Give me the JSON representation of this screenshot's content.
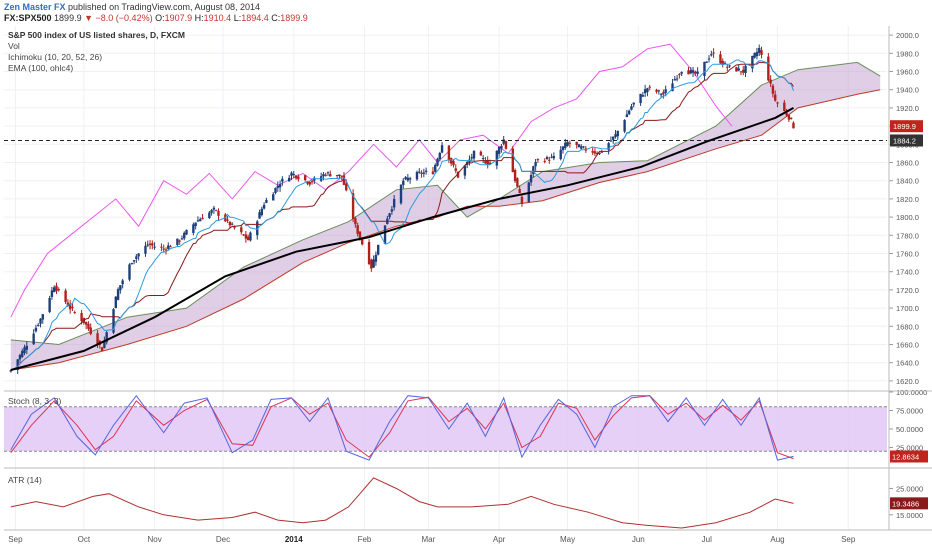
{
  "header": {
    "author": "Zen Master FX",
    "published": "published on TradingView.com, August 08, 2014",
    "symbol": "FX:SPX500",
    "last": "1899.9",
    "arrow": "▼",
    "change": "−8.0 (−0.42%)",
    "o_label": "O:",
    "o_value": "1907.9",
    "h_label": "H:",
    "h_value": "1910.4",
    "l_label": "L:",
    "l_value": "1894.4",
    "c_label": "C:",
    "c_value": "1899.9"
  },
  "legend": {
    "title": "S&P 500 index of US listed shares, D, FXCM",
    "vol": "Vol",
    "ichimoku": "Ichimoku (10, 20, 52, 26)",
    "ema": "EMA (100, ohlc4)",
    "stoch": "Stoch (8, 3, 3)",
    "atr": "ATR (14)"
  },
  "colors": {
    "up": "#1f3f7a",
    "down": "#b0201c",
    "cloud_fill": "#c7a6d4",
    "cloud_edge_top": "#6b8e5a",
    "cloud_edge_bottom": "#c0392b",
    "tenkan": "#2b9be0",
    "kijun": "#8a1a1a",
    "chikou": "#ee55ee",
    "ema": "#000000",
    "stoch_k": "#5566dd",
    "stoch_d": "#dd3355",
    "stoch_band": "#e2c8f6",
    "atr": "#b03030"
  },
  "markers": {
    "price_label": "1899.9",
    "hline_label": "1884.2",
    "stoch_label": "12.8634",
    "atr_label": "19.3486"
  },
  "chart_data": [
    {
      "type": "candlestick",
      "title": "S&P 500 index of US listed shares, D, FXCM",
      "ylim": [
        1610,
        2010
      ],
      "y_ticks": [
        "2000.0",
        "1980.0",
        "1960.0",
        "1940.0",
        "1920.0",
        "1900.0",
        "1880.0",
        "1860.0",
        "1840.0",
        "1820.0",
        "1800.0",
        "1780.0",
        "1760.0",
        "1740.0",
        "1720.0",
        "1700.0",
        "1680.0",
        "1660.0",
        "1640.0",
        "1620.0"
      ],
      "x_ticks": [
        "Sep",
        "Oct",
        "Nov",
        "Dec",
        "2014",
        "Feb",
        "Mar",
        "Apr",
        "May",
        "Jun",
        "Jul",
        "Aug",
        "Sep"
      ],
      "horizontal_line": 1884.2,
      "last_price": 1899.9,
      "close_path": [
        [
          "2013-08-30",
          1632
        ],
        [
          "2013-09-05",
          1656
        ],
        [
          "2013-09-12",
          1688
        ],
        [
          "2013-09-18",
          1725
        ],
        [
          "2013-09-25",
          1700
        ],
        [
          "2013-10-01",
          1685
        ],
        [
          "2013-10-09",
          1655
        ],
        [
          "2013-10-16",
          1720
        ],
        [
          "2013-10-22",
          1752
        ],
        [
          "2013-10-29",
          1770
        ],
        [
          "2013-11-05",
          1765
        ],
        [
          "2013-11-12",
          1775
        ],
        [
          "2013-11-19",
          1795
        ],
        [
          "2013-11-27",
          1808
        ],
        [
          "2013-12-05",
          1790
        ],
        [
          "2013-12-12",
          1775
        ],
        [
          "2013-12-19",
          1815
        ],
        [
          "2013-12-26",
          1838
        ],
        [
          "2013-12-31",
          1848
        ],
        [
          "2014-01-08",
          1838
        ],
        [
          "2014-01-15",
          1848
        ],
        [
          "2014-01-22",
          1845
        ],
        [
          "2014-01-28",
          1790
        ],
        [
          "2014-02-04",
          1745
        ],
        [
          "2014-02-11",
          1800
        ],
        [
          "2014-02-18",
          1840
        ],
        [
          "2014-02-25",
          1848
        ],
        [
          "2014-03-03",
          1850
        ],
        [
          "2014-03-07",
          1880
        ],
        [
          "2014-03-14",
          1845
        ],
        [
          "2014-03-21",
          1870
        ],
        [
          "2014-03-28",
          1858
        ],
        [
          "2014-04-03",
          1885
        ],
        [
          "2014-04-11",
          1815
        ],
        [
          "2014-04-17",
          1862
        ],
        [
          "2014-04-25",
          1865
        ],
        [
          "2014-05-01",
          1882
        ],
        [
          "2014-05-08",
          1875
        ],
        [
          "2014-05-15",
          1870
        ],
        [
          "2014-05-22",
          1890
        ],
        [
          "2014-05-29",
          1922
        ],
        [
          "2014-06-05",
          1942
        ],
        [
          "2014-06-12",
          1935
        ],
        [
          "2014-06-20",
          1962
        ],
        [
          "2014-06-27",
          1957
        ],
        [
          "2014-07-03",
          1980
        ],
        [
          "2014-07-10",
          1965
        ],
        [
          "2014-07-17",
          1960
        ],
        [
          "2014-07-24",
          1985
        ],
        [
          "2014-07-31",
          1928
        ],
        [
          "2014-08-06",
          1910
        ],
        [
          "2014-08-08",
          1899.9
        ]
      ],
      "ema_100": [
        [
          "2013-08-30",
          1632
        ],
        [
          "2013-10-01",
          1653
        ],
        [
          "2013-11-01",
          1690
        ],
        [
          "2013-12-02",
          1735
        ],
        [
          "2014-01-02",
          1762
        ],
        [
          "2014-02-03",
          1778
        ],
        [
          "2014-03-03",
          1800
        ],
        [
          "2014-04-01",
          1820
        ],
        [
          "2014-05-01",
          1835
        ],
        [
          "2014-06-02",
          1855
        ],
        [
          "2014-07-01",
          1883
        ],
        [
          "2014-07-31",
          1909
        ],
        [
          "2014-08-08",
          1920
        ]
      ],
      "cloud_top": [
        [
          "2013-08-30",
          1665
        ],
        [
          "2013-09-20",
          1660
        ],
        [
          "2013-10-20",
          1690
        ],
        [
          "2013-11-15",
          1700
        ],
        [
          "2013-12-10",
          1745
        ],
        [
          "2014-01-05",
          1775
        ],
        [
          "2014-01-25",
          1795
        ],
        [
          "2014-02-15",
          1830
        ],
        [
          "2014-03-05",
          1835
        ],
        [
          "2014-03-18",
          1800
        ],
        [
          "2014-04-01",
          1820
        ],
        [
          "2014-04-20",
          1850
        ],
        [
          "2014-05-15",
          1860
        ],
        [
          "2014-06-05",
          1862
        ],
        [
          "2014-07-05",
          1900
        ],
        [
          "2014-07-25",
          1945
        ],
        [
          "2014-08-10",
          1962
        ],
        [
          "2014-09-05",
          1970
        ],
        [
          "2014-09-15",
          1955
        ]
      ],
      "cloud_bottom": [
        [
          "2013-08-30",
          1632
        ],
        [
          "2013-09-20",
          1640
        ],
        [
          "2013-10-20",
          1660
        ],
        [
          "2013-11-15",
          1680
        ],
        [
          "2013-12-10",
          1710
        ],
        [
          "2014-01-05",
          1750
        ],
        [
          "2014-01-25",
          1772
        ],
        [
          "2014-02-15",
          1790
        ],
        [
          "2014-03-05",
          1800
        ],
        [
          "2014-03-18",
          1812
        ],
        [
          "2014-04-01",
          1812
        ],
        [
          "2014-04-20",
          1818
        ],
        [
          "2014-05-15",
          1838
        ],
        [
          "2014-06-05",
          1850
        ],
        [
          "2014-07-05",
          1875
        ],
        [
          "2014-07-25",
          1890
        ],
        [
          "2014-08-10",
          1920
        ],
        [
          "2014-09-05",
          1935
        ],
        [
          "2014-09-15",
          1940
        ]
      ],
      "chikou": [
        [
          "2013-08-30",
          1690
        ],
        [
          "2013-09-05",
          1720
        ],
        [
          "2013-09-15",
          1760
        ],
        [
          "2013-09-25",
          1780
        ],
        [
          "2013-10-05",
          1800
        ],
        [
          "2013-10-15",
          1820
        ],
        [
          "2013-10-25",
          1790
        ],
        [
          "2013-11-05",
          1840
        ],
        [
          "2013-11-15",
          1825
        ],
        [
          "2013-11-25",
          1848
        ],
        [
          "2013-12-05",
          1820
        ],
        [
          "2013-12-15",
          1850
        ],
        [
          "2013-12-25",
          1835
        ],
        [
          "2014-01-05",
          1848
        ],
        [
          "2014-01-15",
          1830
        ],
        [
          "2014-01-25",
          1850
        ],
        [
          "2014-02-05",
          1880
        ],
        [
          "2014-02-15",
          1855
        ],
        [
          "2014-02-25",
          1885
        ],
        [
          "2014-03-05",
          1860
        ],
        [
          "2014-03-15",
          1885
        ],
        [
          "2014-03-25",
          1890
        ],
        [
          "2014-04-05",
          1870
        ],
        [
          "2014-04-15",
          1905
        ],
        [
          "2014-04-25",
          1920
        ],
        [
          "2014-05-05",
          1930
        ],
        [
          "2014-05-15",
          1960
        ],
        [
          "2014-05-25",
          1965
        ],
        [
          "2014-06-05",
          1985
        ],
        [
          "2014-06-15",
          1990
        ],
        [
          "2014-06-25",
          1960
        ],
        [
          "2014-07-05",
          1922
        ],
        [
          "2014-07-12",
          1900
        ]
      ]
    },
    {
      "type": "line",
      "title": "Stoch (8, 3, 3)",
      "ylim": [
        0,
        100
      ],
      "y_ticks": [
        "100.0000",
        "75.0000",
        "50.0000",
        "25.0000"
      ],
      "bands": [
        20,
        80
      ],
      "last": 12.8634,
      "k": [
        [
          "2013-08-30",
          22
        ],
        [
          "2013-09-08",
          70
        ],
        [
          "2013-09-18",
          92
        ],
        [
          "2013-09-28",
          40
        ],
        [
          "2013-10-06",
          15
        ],
        [
          "2013-10-14",
          55
        ],
        [
          "2013-10-24",
          95
        ],
        [
          "2013-11-05",
          45
        ],
        [
          "2013-11-14",
          85
        ],
        [
          "2013-11-24",
          92
        ],
        [
          "2013-12-05",
          18
        ],
        [
          "2013-12-14",
          35
        ],
        [
          "2013-12-22",
          90
        ],
        [
          "2013-12-31",
          92
        ],
        [
          "2014-01-08",
          60
        ],
        [
          "2014-01-16",
          92
        ],
        [
          "2014-01-24",
          20
        ],
        [
          "2014-02-03",
          8
        ],
        [
          "2014-02-12",
          60
        ],
        [
          "2014-02-20",
          95
        ],
        [
          "2014-03-01",
          92
        ],
        [
          "2014-03-10",
          50
        ],
        [
          "2014-03-18",
          85
        ],
        [
          "2014-03-26",
          40
        ],
        [
          "2014-04-03",
          92
        ],
        [
          "2014-04-11",
          12
        ],
        [
          "2014-04-19",
          55
        ],
        [
          "2014-04-27",
          90
        ],
        [
          "2014-05-05",
          70
        ],
        [
          "2014-05-13",
          25
        ],
        [
          "2014-05-21",
          80
        ],
        [
          "2014-05-29",
          95
        ],
        [
          "2014-06-06",
          95
        ],
        [
          "2014-06-14",
          60
        ],
        [
          "2014-06-22",
          92
        ],
        [
          "2014-06-30",
          55
        ],
        [
          "2014-07-08",
          90
        ],
        [
          "2014-07-16",
          55
        ],
        [
          "2014-07-24",
          92
        ],
        [
          "2014-08-01",
          8
        ],
        [
          "2014-08-08",
          13
        ]
      ],
      "d": [
        [
          "2013-08-30",
          18
        ],
        [
          "2013-09-08",
          55
        ],
        [
          "2013-09-18",
          88
        ],
        [
          "2013-09-28",
          55
        ],
        [
          "2013-10-06",
          22
        ],
        [
          "2013-10-14",
          40
        ],
        [
          "2013-10-24",
          88
        ],
        [
          "2013-11-05",
          55
        ],
        [
          "2013-11-14",
          75
        ],
        [
          "2013-11-24",
          90
        ],
        [
          "2013-12-05",
          30
        ],
        [
          "2013-12-14",
          28
        ],
        [
          "2013-12-22",
          80
        ],
        [
          "2013-12-31",
          92
        ],
        [
          "2014-01-08",
          70
        ],
        [
          "2014-01-16",
          85
        ],
        [
          "2014-01-24",
          35
        ],
        [
          "2014-02-03",
          12
        ],
        [
          "2014-02-12",
          45
        ],
        [
          "2014-02-20",
          88
        ],
        [
          "2014-03-01",
          93
        ],
        [
          "2014-03-10",
          60
        ],
        [
          "2014-03-18",
          78
        ],
        [
          "2014-03-26",
          50
        ],
        [
          "2014-04-03",
          85
        ],
        [
          "2014-04-11",
          25
        ],
        [
          "2014-04-19",
          40
        ],
        [
          "2014-04-27",
          85
        ],
        [
          "2014-05-05",
          78
        ],
        [
          "2014-05-13",
          35
        ],
        [
          "2014-05-21",
          68
        ],
        [
          "2014-05-29",
          92
        ],
        [
          "2014-06-06",
          95
        ],
        [
          "2014-06-14",
          70
        ],
        [
          "2014-06-22",
          85
        ],
        [
          "2014-06-30",
          62
        ],
        [
          "2014-07-08",
          82
        ],
        [
          "2014-07-16",
          62
        ],
        [
          "2014-07-24",
          88
        ],
        [
          "2014-08-01",
          18
        ],
        [
          "2014-08-08",
          10
        ]
      ]
    },
    {
      "type": "line",
      "title": "ATR (14)",
      "ylim": [
        10,
        32
      ],
      "y_ticks": [
        "25.0000",
        "15.0000"
      ],
      "last": 19.3486,
      "values": [
        [
          "2013-08-30",
          18
        ],
        [
          "2013-09-10",
          20
        ],
        [
          "2013-09-22",
          18
        ],
        [
          "2013-10-05",
          22
        ],
        [
          "2013-10-12",
          23
        ],
        [
          "2013-10-25",
          18
        ],
        [
          "2013-11-05",
          15
        ],
        [
          "2013-11-20",
          13
        ],
        [
          "2013-12-05",
          14
        ],
        [
          "2013-12-15",
          16
        ],
        [
          "2013-12-25",
          13
        ],
        [
          "2014-01-05",
          12
        ],
        [
          "2014-01-15",
          13
        ],
        [
          "2014-01-25",
          18
        ],
        [
          "2014-02-05",
          29
        ],
        [
          "2014-02-15",
          25
        ],
        [
          "2014-02-25",
          20
        ],
        [
          "2014-03-05",
          18
        ],
        [
          "2014-03-20",
          18
        ],
        [
          "2014-04-05",
          19
        ],
        [
          "2014-04-15",
          22
        ],
        [
          "2014-04-25",
          19
        ],
        [
          "2014-05-10",
          16
        ],
        [
          "2014-05-25",
          12
        ],
        [
          "2014-06-05",
          11
        ],
        [
          "2014-06-20",
          10
        ],
        [
          "2014-07-05",
          12
        ],
        [
          "2014-07-20",
          16
        ],
        [
          "2014-07-31",
          21
        ],
        [
          "2014-08-08",
          19.35
        ]
      ]
    }
  ]
}
